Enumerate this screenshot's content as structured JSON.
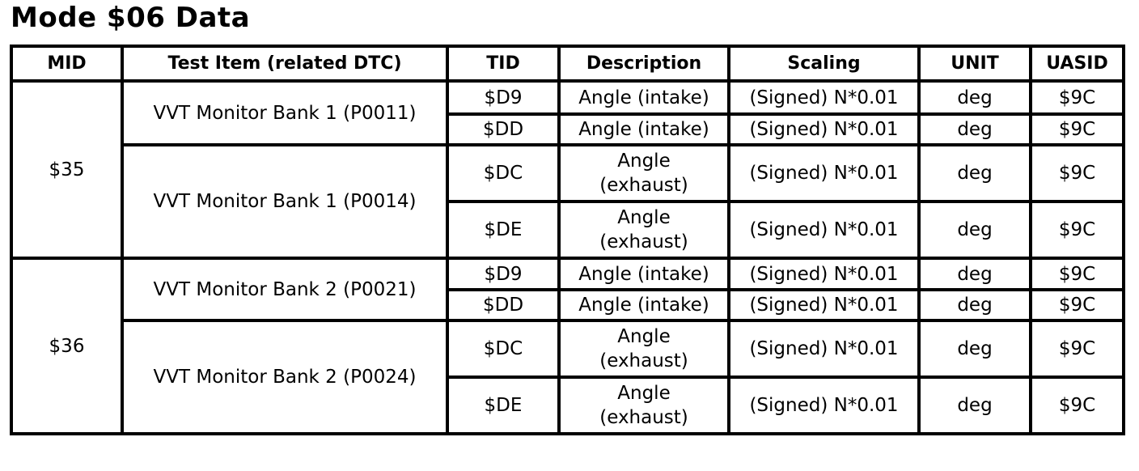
{
  "title": "Mode $06 Data",
  "headers": [
    "MID",
    "Test Item (related DTC)",
    "TID",
    "Description",
    "Scaling",
    "UNIT",
    "UASID"
  ],
  "rows": [
    {
      "mid": "$35",
      "item": "VVT Monitor Bank 1 (P0011)",
      "tid": "$D9",
      "desc": "Angle (intake)",
      "scaling": "(Signed) N*0.01",
      "unit": "deg",
      "uasid": "$9C"
    },
    {
      "tid": "$DD",
      "desc": "Angle (intake)",
      "scaling": "(Signed) N*0.01",
      "unit": "deg",
      "uasid": "$9C"
    },
    {
      "item": "VVT Monitor Bank 1 (P0014)",
      "tid": "$DC",
      "desc": "Angle (exhaust)",
      "scaling": "(Signed) N*0.01",
      "unit": "deg",
      "uasid": "$9C"
    },
    {
      "tid": "$DE",
      "desc": "Angle (exhaust)",
      "scaling": "(Signed) N*0.01",
      "unit": "deg",
      "uasid": "$9C"
    },
    {
      "mid": "$36",
      "item": "VVT Monitor Bank 2 (P0021)",
      "tid": "$D9",
      "desc": "Angle (intake)",
      "scaling": "(Signed) N*0.01",
      "unit": "deg",
      "uasid": "$9C"
    },
    {
      "tid": "$DD",
      "desc": "Angle (intake)",
      "scaling": "(Signed) N*0.01",
      "unit": "deg",
      "uasid": "$9C"
    },
    {
      "item": "VVT Monitor Bank 2 (P0024)",
      "tid": "$DC",
      "desc": "Angle (exhaust)",
      "scaling": "(Signed) N*0.01",
      "unit": "deg",
      "uasid": "$9C"
    },
    {
      "tid": "$DE",
      "desc": "Angle (exhaust)",
      "scaling": "(Signed) N*0.01",
      "unit": "deg",
      "uasid": "$9C"
    }
  ]
}
